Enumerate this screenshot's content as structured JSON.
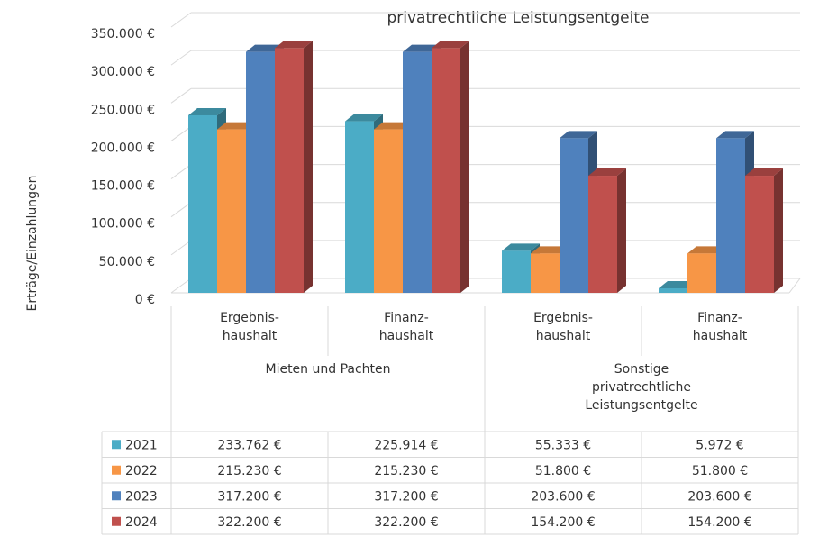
{
  "chart_data": {
    "type": "bar",
    "title": "privatrechtliche Leistungsentgelte",
    "y_label": "Erträge/Einzahlungen",
    "categories": [
      "Ergebnis-\nhaushalt",
      "Finanz-\nhaushalt",
      "Ergebnis-\nhaushalt",
      "Finanz-\nhaushalt"
    ],
    "groups": [
      "Mieten und Pachten",
      "Sonstige\nprivatrechtliche\nLeistungsentgelte"
    ],
    "series": [
      {
        "name": "2021",
        "color": "#4bacc6",
        "values": [
          233762,
          225914,
          55333,
          5972
        ],
        "value_labels": [
          "233.762 €",
          "225.914 €",
          "55.333 €",
          "5.972 €"
        ]
      },
      {
        "name": "2022",
        "color": "#f79646",
        "values": [
          215230,
          215230,
          51800,
          51800
        ],
        "value_labels": [
          "215.230 €",
          "215.230 €",
          "51.800 €",
          "51.800 €"
        ]
      },
      {
        "name": "2023",
        "color": "#4f81bd",
        "values": [
          317200,
          317200,
          203600,
          203600
        ],
        "value_labels": [
          "317.200 €",
          "317.200 €",
          "203.600 €",
          "203.600 €"
        ]
      },
      {
        "name": "2024",
        "color": "#c0504d",
        "values": [
          322200,
          322200,
          154200,
          154200
        ],
        "value_labels": [
          "322.200 €",
          "322.200 €",
          "154.200 €",
          "154.200 €"
        ]
      }
    ],
    "ylim": [
      0,
      350000
    ],
    "yticks": [
      {
        "value": 0,
        "label": "0 €"
      },
      {
        "value": 50000,
        "label": "50.000 €"
      },
      {
        "value": 100000,
        "label": "100.000 €"
      },
      {
        "value": 150000,
        "label": "150.000 €"
      },
      {
        "value": 200000,
        "label": "200.000 €"
      },
      {
        "value": 250000,
        "label": "250.000 €"
      },
      {
        "value": 300000,
        "label": "300.000 €"
      },
      {
        "value": 350000,
        "label": "350.000 €"
      }
    ],
    "grid": true
  }
}
